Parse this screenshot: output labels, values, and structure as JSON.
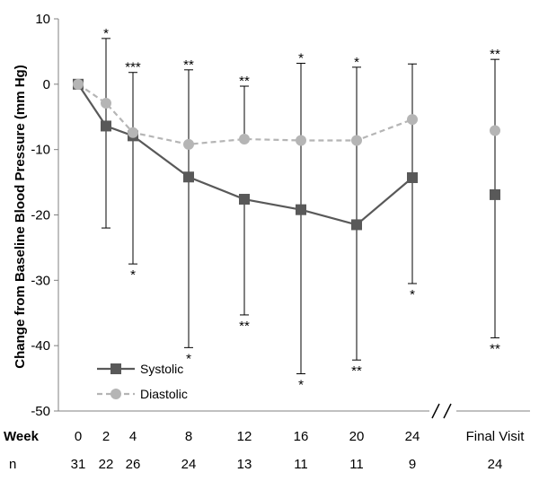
{
  "chart_data": {
    "type": "line",
    "title": "",
    "xlabel": "",
    "ylabel": "Change from Baseline Blood Pressure (mm Hg)",
    "ylim": [
      -50,
      10
    ],
    "yticks": [
      10,
      0,
      -10,
      -20,
      -30,
      -40,
      -50
    ],
    "grid": false,
    "axis_break": true,
    "legend_position": "bottom-left",
    "row_labels": {
      "week": "Week",
      "n": "n"
    },
    "x": [
      "0",
      "2",
      "4",
      "8",
      "12",
      "16",
      "20",
      "24",
      "Final Visit"
    ],
    "n": [
      "31",
      "22",
      "26",
      "24",
      "13",
      "11",
      "11",
      "9",
      "24"
    ],
    "series": [
      {
        "name": "Systolic",
        "color": "#595959",
        "marker": "square",
        "dash": "solid",
        "values": [
          0,
          -6.4,
          -7.9,
          -14.2,
          -17.6,
          -19.2,
          -21.5,
          -14.3,
          -16.9
        ],
        "err_upper": [
          null,
          7.0,
          null,
          2.2,
          null,
          3.2,
          2.6,
          3.1,
          3.8
        ],
        "err_lower": [
          null,
          -22.0,
          -27.5,
          -40.3,
          -35.3,
          -44.3,
          -42.2,
          -30.5,
          -38.8
        ],
        "annot_below": [
          "",
          "",
          "*",
          "*",
          "**",
          "*",
          "**",
          "*",
          "**"
        ]
      },
      {
        "name": "Diastolic",
        "color": "#b5b5b5",
        "marker": "circle",
        "dash": "dashed",
        "values": [
          0,
          -2.9,
          -7.4,
          -9.2,
          -8.4,
          -8.6,
          -8.6,
          -5.4,
          -7.1
        ],
        "err_upper": [
          null,
          null,
          1.8,
          null,
          -0.3,
          null,
          null,
          null,
          null
        ],
        "err_lower": [
          null,
          null,
          null,
          null,
          null,
          null,
          null,
          null,
          null
        ],
        "annot_above": [
          "",
          "*",
          "***",
          "**",
          "**",
          "*",
          "*",
          "",
          "**"
        ]
      }
    ]
  }
}
